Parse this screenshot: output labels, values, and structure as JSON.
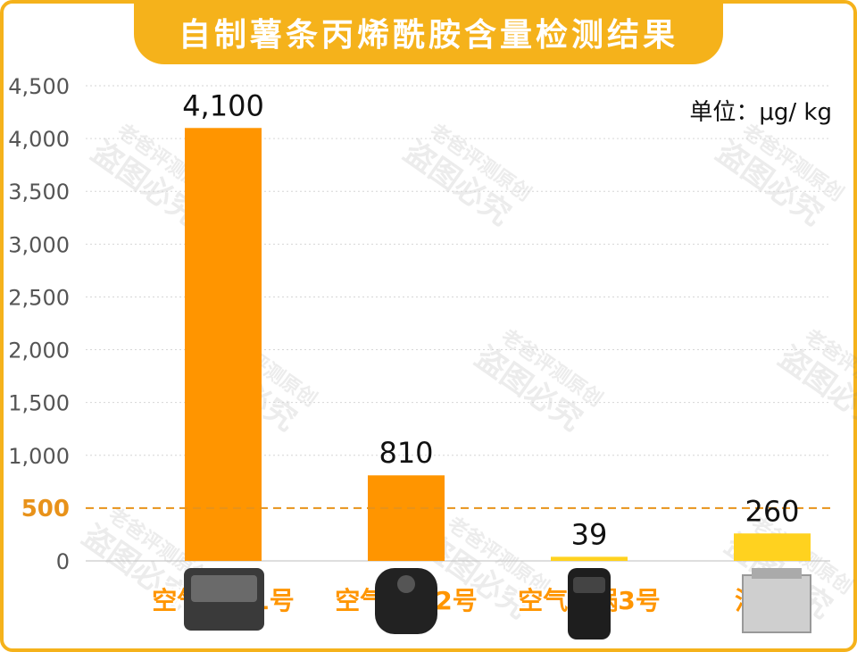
{
  "title": "自制薯条丙烯酰胺含量检测结果",
  "unit": "单位：μg/ kg",
  "watermark": [
    "老爸评测原创",
    "盗图必究"
  ],
  "colors": {
    "accent": "#f5b21b",
    "bar_orange": "#ff9500",
    "bar_yellow": "#ffd21f",
    "threshold": "#e8921a"
  },
  "chart_data": {
    "type": "bar",
    "title": "自制薯条丙烯酰胺含量检测结果",
    "xlabel": "",
    "ylabel": "",
    "unit": "μg/ kg",
    "categories": [
      "空气炸锅1号",
      "空气炸锅2号",
      "空气炸锅3号",
      "油炸锅"
    ],
    "values": [
      4100,
      810,
      39,
      260
    ],
    "value_labels": [
      "4,100",
      "810",
      "39",
      "260"
    ],
    "bar_colors": [
      "#ff9500",
      "#ff9500",
      "#ffd21f",
      "#ffd21f"
    ],
    "ylim": [
      0,
      4500
    ],
    "yticks": [
      0,
      500,
      1000,
      1500,
      2000,
      2500,
      3000,
      3500,
      4000,
      4500
    ],
    "ytick_labels": [
      "0",
      "500",
      "1,000",
      "1,500",
      "2,000",
      "2,500",
      "3,000",
      "3,500",
      "4,000",
      "4,500"
    ],
    "threshold": {
      "value": 500,
      "label": "500",
      "style": "dashed"
    },
    "grid": true,
    "legend": "none"
  }
}
